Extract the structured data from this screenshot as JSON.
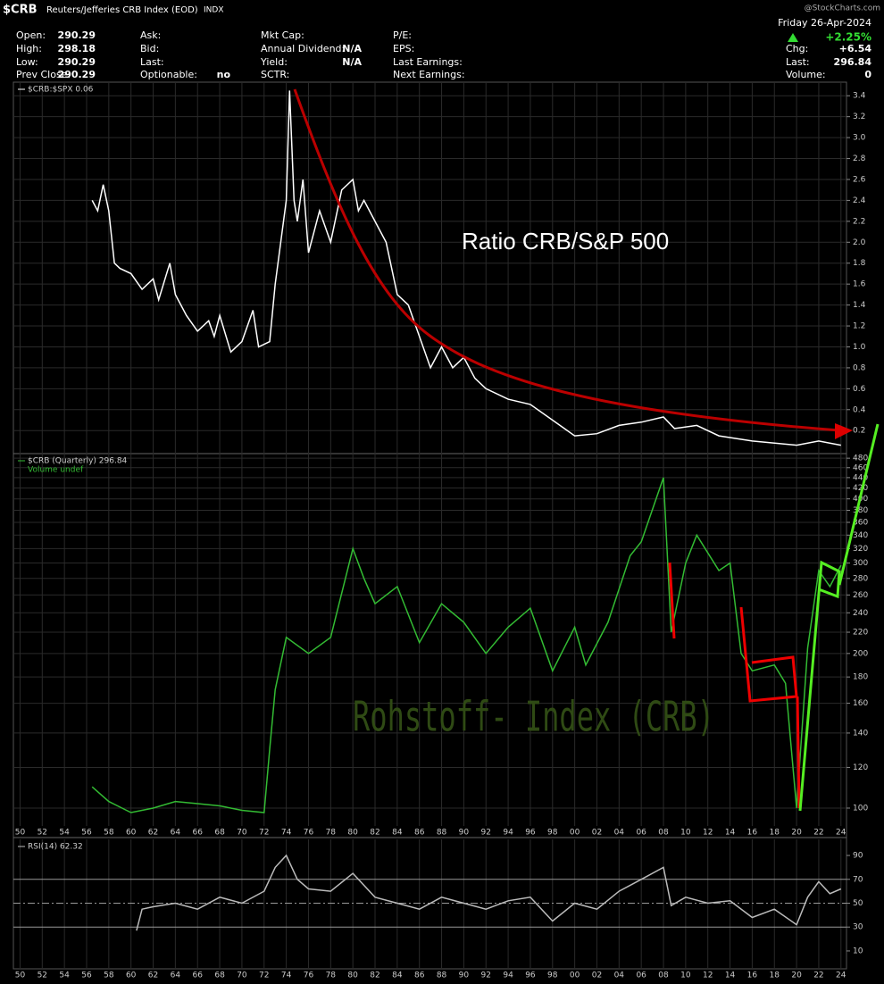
{
  "header": {
    "symbol": "$CRB",
    "name": "Reuters/Jefferies CRB Index (EOD)",
    "exchange": "INDX",
    "watermark": "@StockCharts.com",
    "date": "Friday  26-Apr-2024",
    "change_pct": "+2.25%",
    "columns": [
      [
        {
          "label": "Open:",
          "value": "290.29"
        },
        {
          "label": "High:",
          "value": "298.18"
        },
        {
          "label": "Low:",
          "value": "290.29"
        },
        {
          "label": "Prev Close:",
          "value": "290.29"
        }
      ],
      [
        {
          "label": "Ask:"
        },
        {
          "label": "Bid:"
        },
        {
          "label": "Last:"
        },
        {
          "label": "Optionable:",
          "value": "no"
        }
      ],
      [
        {
          "label": "Mkt Cap:"
        },
        {
          "label": "Annual Dividend:",
          "value": "N/A"
        },
        {
          "label": "Yield:",
          "value": "N/A"
        },
        {
          "label": "SCTR:"
        }
      ],
      [
        {
          "label": "P/E:"
        },
        {
          "label": "EPS:"
        },
        {
          "label": "Last Earnings:"
        },
        {
          "label": "Next Earnings:"
        }
      ],
      [
        {
          "label": "Chg:",
          "value": "+6.54"
        },
        {
          "label": "Last:",
          "value": "296.84"
        },
        {
          "label": "Volume:",
          "value": "0"
        }
      ]
    ]
  },
  "chart_data": [
    {
      "type": "line",
      "legend": "$CRB:$SPX 0.06",
      "annotation": "Ratio CRB/S&P 500",
      "xlim": [
        1949.4,
        2024.5
      ],
      "ylim": [
        -0.02,
        3.53
      ],
      "yticks": [
        0.2,
        0.4,
        0.6,
        0.8,
        {
          "value": 1.0,
          "label": "1.0"
        },
        1.2,
        1.4,
        1.6,
        1.8,
        {
          "value": 2.0,
          "label": "2.0"
        },
        2.2,
        2.4,
        2.6,
        2.8,
        {
          "value": 3.0,
          "label": "3.0"
        },
        3.2,
        3.4
      ],
      "grid": true,
      "series": [
        {
          "name": "$CRB:$SPX",
          "color": "#ffffff",
          "x": [
            1956.5,
            1957,
            1957.5,
            1958,
            1958.5,
            1959,
            1960,
            1961,
            1962,
            1962.5,
            1963.5,
            1964,
            1965,
            1966,
            1967,
            1967.5,
            1968,
            1969,
            1970,
            1971,
            1971.5,
            1972.5,
            1973,
            1974,
            1974.3,
            1974.7,
            1975,
            1975.5,
            1976,
            1977,
            1978,
            1979,
            1980,
            1980.5,
            1981,
            1982,
            1983,
            1984,
            1985,
            1986,
            1987,
            1988,
            1989,
            1990,
            1991,
            1992,
            1994,
            1996,
            1998,
            2000,
            2002,
            2004,
            2006,
            2008,
            2009,
            2011,
            2013,
            2016,
            2020,
            2022,
            2024
          ],
          "values": [
            2.4,
            2.3,
            2.55,
            2.3,
            1.8,
            1.75,
            1.7,
            1.55,
            1.65,
            1.45,
            1.8,
            1.5,
            1.3,
            1.15,
            1.25,
            1.1,
            1.3,
            0.95,
            1.05,
            1.35,
            1.0,
            1.05,
            1.6,
            2.4,
            3.45,
            2.4,
            2.2,
            2.6,
            1.9,
            2.3,
            2.0,
            2.5,
            2.6,
            2.3,
            2.4,
            2.2,
            2.0,
            1.5,
            1.4,
            1.1,
            0.8,
            1.0,
            0.8,
            0.9,
            0.7,
            0.6,
            0.5,
            0.45,
            0.3,
            0.15,
            0.17,
            0.25,
            0.28,
            0.33,
            0.22,
            0.25,
            0.15,
            0.1,
            0.06,
            0.1,
            0.06
          ]
        }
      ]
    },
    {
      "type": "line",
      "legend": "$CRB (Quarterly) 296.84",
      "sublegend": "Volume undef",
      "annotation": "Rohstoff- Index (CRB)",
      "log_scale": true,
      "xlim": [
        1949.4,
        2024.5
      ],
      "ylim": [
        92.3,
        490
      ],
      "yticks": [
        100,
        120,
        140,
        160,
        180,
        200,
        220,
        240,
        260,
        280,
        300,
        320,
        340,
        360,
        380,
        400,
        420,
        440,
        460,
        480
      ],
      "grid": true,
      "xticks": [
        {
          "value": 1950,
          "label": "50"
        },
        {
          "value": 1952,
          "label": "52"
        },
        {
          "value": 1954,
          "label": "54"
        },
        {
          "value": 1956,
          "label": "56"
        },
        {
          "value": 1958,
          "label": "58"
        },
        {
          "value": 1960,
          "label": "60"
        },
        {
          "value": 1962,
          "label": "62"
        },
        {
          "value": 1964,
          "label": "64"
        },
        {
          "value": 1966,
          "label": "66"
        },
        {
          "value": 1968,
          "label": "68"
        },
        {
          "value": 1970,
          "label": "70"
        },
        {
          "value": 1972,
          "label": "72"
        },
        {
          "value": 1974,
          "label": "74"
        },
        {
          "value": 1976,
          "label": "76"
        },
        {
          "value": 1978,
          "label": "78"
        },
        {
          "value": 1980,
          "label": "80"
        },
        {
          "value": 1982,
          "label": "82"
        },
        {
          "value": 1984,
          "label": "84"
        },
        {
          "value": 1986,
          "label": "86"
        },
        {
          "value": 1988,
          "label": "88"
        },
        {
          "value": 1990,
          "label": "90"
        },
        {
          "value": 1992,
          "label": "92"
        },
        {
          "value": 1994,
          "label": "94"
        },
        {
          "value": 1996,
          "label": "96"
        },
        {
          "value": 1998,
          "label": "98"
        },
        {
          "value": 2000,
          "label": "00"
        },
        {
          "value": 2002,
          "label": "02"
        },
        {
          "value": 2004,
          "label": "04"
        },
        {
          "value": 2006,
          "label": "06"
        },
        {
          "value": 2008,
          "label": "08"
        },
        {
          "value": 2010,
          "label": "10"
        },
        {
          "value": 2012,
          "label": "12"
        },
        {
          "value": 2014,
          "label": "14"
        },
        {
          "value": 2016,
          "label": "16"
        },
        {
          "value": 2018,
          "label": "18"
        },
        {
          "value": 2020,
          "label": "20"
        },
        {
          "value": 2022,
          "label": "22"
        },
        {
          "value": 2024,
          "label": "24"
        }
      ],
      "series": [
        {
          "name": "$CRB",
          "color": "#33bb33",
          "x": [
            1956.5,
            1958,
            1960,
            1962,
            1964,
            1966,
            1968,
            1970,
            1972,
            1972.5,
            1973,
            1974,
            1976,
            1978,
            1980,
            1981,
            1982,
            1984,
            1986,
            1988,
            1990,
            1992,
            1994,
            1996,
            1998,
            2000,
            2001,
            2003,
            2005,
            2006,
            2008,
            2008.7,
            2010,
            2011,
            2013,
            2014,
            2015,
            2016,
            2018,
            2019,
            2020,
            2021,
            2022,
            2023,
            2024
          ],
          "values": [
            110,
            103,
            98,
            100,
            103,
            102,
            101,
            99,
            98,
            130,
            170,
            215,
            200,
            215,
            320,
            280,
            250,
            270,
            210,
            250,
            230,
            200,
            225,
            245,
            185,
            225,
            190,
            230,
            310,
            330,
            440,
            220,
            300,
            340,
            290,
            300,
            200,
            185,
            190,
            175,
            100,
            205,
            290,
            270,
            297
          ]
        }
      ]
    },
    {
      "type": "line",
      "legend": "RSI(14) 62.32",
      "xlim": [
        1949.4,
        2024.5
      ],
      "ylim": [
        -5,
        103.5
      ],
      "yticks": [
        10,
        30,
        50,
        70,
        90
      ],
      "ref_lines": [
        30,
        50,
        70
      ],
      "xticks": [
        {
          "value": 1950,
          "label": "50"
        },
        {
          "value": 1952,
          "label": "52"
        },
        {
          "value": 1954,
          "label": "54"
        },
        {
          "value": 1956,
          "label": "56"
        },
        {
          "value": 1958,
          "label": "58"
        },
        {
          "value": 1960,
          "label": "60"
        },
        {
          "value": 1962,
          "label": "62"
        },
        {
          "value": 1964,
          "label": "64"
        },
        {
          "value": 1966,
          "label": "66"
        },
        {
          "value": 1968,
          "label": "68"
        },
        {
          "value": 1970,
          "label": "70"
        },
        {
          "value": 1972,
          "label": "72"
        },
        {
          "value": 1974,
          "label": "74"
        },
        {
          "value": 1976,
          "label": "76"
        },
        {
          "value": 1978,
          "label": "78"
        },
        {
          "value": 1980,
          "label": "80"
        },
        {
          "value": 1982,
          "label": "82"
        },
        {
          "value": 1984,
          "label": "84"
        },
        {
          "value": 1986,
          "label": "86"
        },
        {
          "value": 1988,
          "label": "88"
        },
        {
          "value": 1990,
          "label": "90"
        },
        {
          "value": 1992,
          "label": "92"
        },
        {
          "value": 1994,
          "label": "94"
        },
        {
          "value": 1996,
          "label": "96"
        },
        {
          "value": 1998,
          "label": "98"
        },
        {
          "value": 2000,
          "label": "00"
        },
        {
          "value": 2002,
          "label": "02"
        },
        {
          "value": 2004,
          "label": "04"
        },
        {
          "value": 2006,
          "label": "06"
        },
        {
          "value": 2008,
          "label": "08"
        },
        {
          "value": 2010,
          "label": "10"
        },
        {
          "value": 2012,
          "label": "12"
        },
        {
          "value": 2014,
          "label": "14"
        },
        {
          "value": 2016,
          "label": "16"
        },
        {
          "value": 2018,
          "label": "18"
        },
        {
          "value": 2020,
          "label": "20"
        },
        {
          "value": 2022,
          "label": "22"
        },
        {
          "value": 2024,
          "label": "24"
        }
      ],
      "series": [
        {
          "name": "RSI(14)",
          "color": "#bbbbbb",
          "x": [
            1960.5,
            1961,
            1962,
            1964,
            1966,
            1968,
            1970,
            1972,
            1973,
            1974,
            1975,
            1976,
            1978,
            1980,
            1982,
            1984,
            1986,
            1988,
            1990,
            1992,
            1994,
            1996,
            1998,
            2000,
            2002,
            2004,
            2006,
            2008,
            2008.7,
            2010,
            2012,
            2014,
            2016,
            2018,
            2020,
            2021,
            2022,
            2023,
            2024
          ],
          "values": [
            27,
            45,
            47,
            50,
            45,
            55,
            50,
            60,
            80,
            90,
            70,
            62,
            60,
            75,
            55,
            50,
            45,
            55,
            50,
            45,
            52,
            55,
            35,
            50,
            45,
            60,
            70,
            80,
            48,
            55,
            50,
            52,
            38,
            45,
            32,
            55,
            68,
            58,
            62
          ]
        }
      ]
    }
  ]
}
